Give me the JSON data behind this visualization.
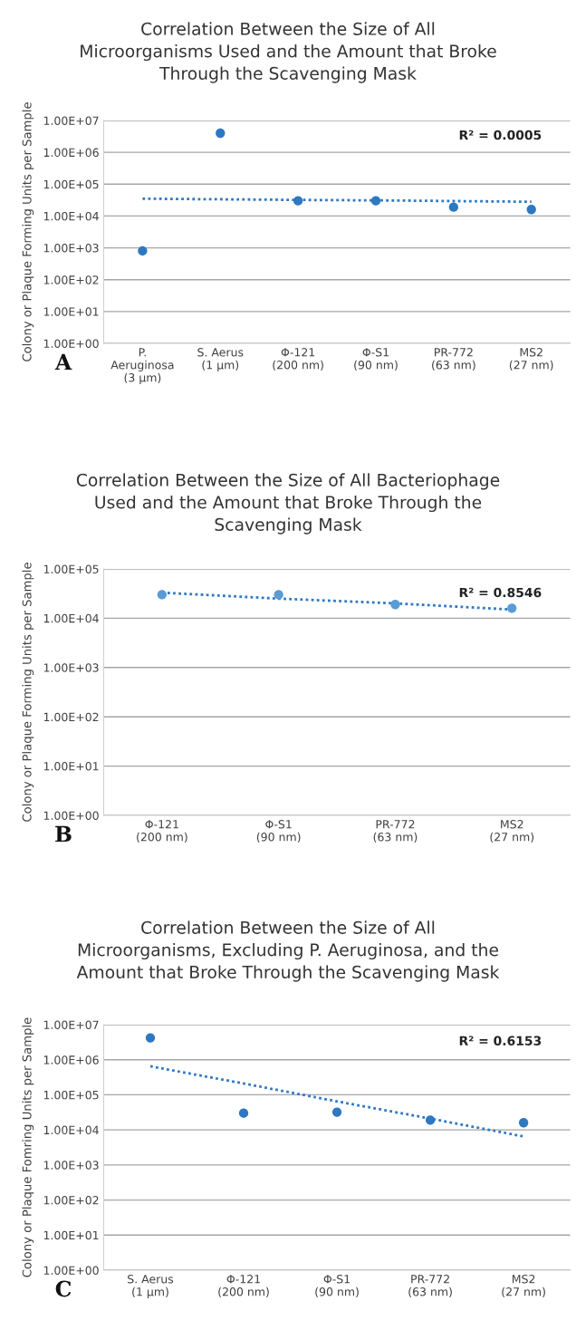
{
  "chart_data": [
    {
      "type": "scatter",
      "title": "Correlation Between the Size of All Microorganisms Used and the Amount that Broke Through the Scavenging Mask",
      "ylabel": "Colony or Plaque Forming Units per Sample",
      "categories": [
        "P.\nAeruginosa\n(3 μm)",
        "S. Aerus\n(1 μm)",
        "Φ-121\n(200 nm)",
        "Φ-S1\n(90 nm)",
        "PR-772\n(63 nm)",
        "MS2\n(27 nm)"
      ],
      "series": [
        {
          "color": "#2e78c2",
          "marker": "circle",
          "values": [
            800,
            4000000,
            30000,
            30000,
            19000,
            16000
          ]
        },
        {
          "type": "line",
          "color": "#2e78c2",
          "line_style": "dotted",
          "values": [
            35000,
            33500,
            32000,
            31000,
            29500,
            28000
          ]
        }
      ],
      "log": "y",
      "ylim": [
        1,
        10000000
      ],
      "yticks": [
        {
          "value": 1,
          "label": "1.00E+00"
        },
        {
          "value": 10,
          "label": "1.00E+01"
        },
        {
          "value": 100,
          "label": "1.00E+02"
        },
        {
          "value": 1000,
          "label": "1.00E+03"
        },
        {
          "value": 10000,
          "label": "1.00E+04"
        },
        {
          "value": 100000,
          "label": "1.00E+05"
        },
        {
          "value": 1000000,
          "label": "1.00E+06"
        },
        {
          "value": 10000000,
          "label": "1.00E+07"
        }
      ],
      "grid": "y",
      "annotations": [
        "R² = 0.0005",
        "A"
      ]
    },
    {
      "type": "scatter",
      "title": "Correlation Between the Size of All Bacteriophage Used and the Amount that Broke Through the Scavenging Mask",
      "ylabel": "Colony or Plaque Forming Units per Sample",
      "categories": [
        "Φ-121\n(200 nm)",
        "Φ-S1\n(90 nm)",
        "PR-772\n(63 nm)",
        "MS2\n(27 nm)"
      ],
      "series": [
        {
          "color": "#5b9bd5",
          "marker": "circle",
          "values": [
            30000,
            30000,
            19000,
            16000
          ]
        },
        {
          "type": "line",
          "color": "#2e78c2",
          "line_style": "dotted",
          "values": [
            33000,
            25000,
            20000,
            15000
          ]
        }
      ],
      "log": "y",
      "ylim": [
        1,
        100000
      ],
      "yticks": [
        {
          "value": 1,
          "label": "1.00E+00"
        },
        {
          "value": 10,
          "label": "1.00E+01"
        },
        {
          "value": 100,
          "label": "1.00E+02"
        },
        {
          "value": 1000,
          "label": "1.00E+03"
        },
        {
          "value": 10000,
          "label": "1.00E+04"
        },
        {
          "value": 100000,
          "label": "1.00E+05"
        }
      ],
      "grid": "y",
      "annotations": [
        "R² = 0.8546",
        "B"
      ]
    },
    {
      "type": "scatter",
      "title": "Correlation Between the Size of All Microorganisms, Excluding P. Aeruginosa, and the Amount that Broke Through the Scavenging Mask",
      "ylabel": "Colony or Plaque Fomring Units per Sample",
      "categories": [
        "S. Aerus\n(1 μm)",
        "Φ-121\n(200 nm)",
        "Φ-S1\n(90 nm)",
        "PR-772\n(63 nm)",
        "MS2\n(27 nm)"
      ],
      "series": [
        {
          "color": "#2e78c2",
          "marker": "circle",
          "values": [
            4200000,
            30000,
            32000,
            19000,
            16000
          ]
        },
        {
          "type": "line",
          "color": "#2e78c2",
          "line_style": "dotted",
          "values": [
            650000,
            210000,
            65000,
            21000,
            6500
          ]
        }
      ],
      "log": "y",
      "ylim": [
        1,
        10000000
      ],
      "yticks": [
        {
          "value": 1,
          "label": "1.00E+00"
        },
        {
          "value": 10,
          "label": "1.00E+01"
        },
        {
          "value": 100,
          "label": "1.00E+02"
        },
        {
          "value": 1000,
          "label": "1.00E+03"
        },
        {
          "value": 10000,
          "label": "1.00E+04"
        },
        {
          "value": 100000,
          "label": "1.00E+05"
        },
        {
          "value": 1000000,
          "label": "1.00E+06"
        },
        {
          "value": 10000000,
          "label": "1.00E+07"
        }
      ],
      "grid": "y",
      "annotations": [
        "R² = 0.6153",
        "C"
      ]
    }
  ]
}
